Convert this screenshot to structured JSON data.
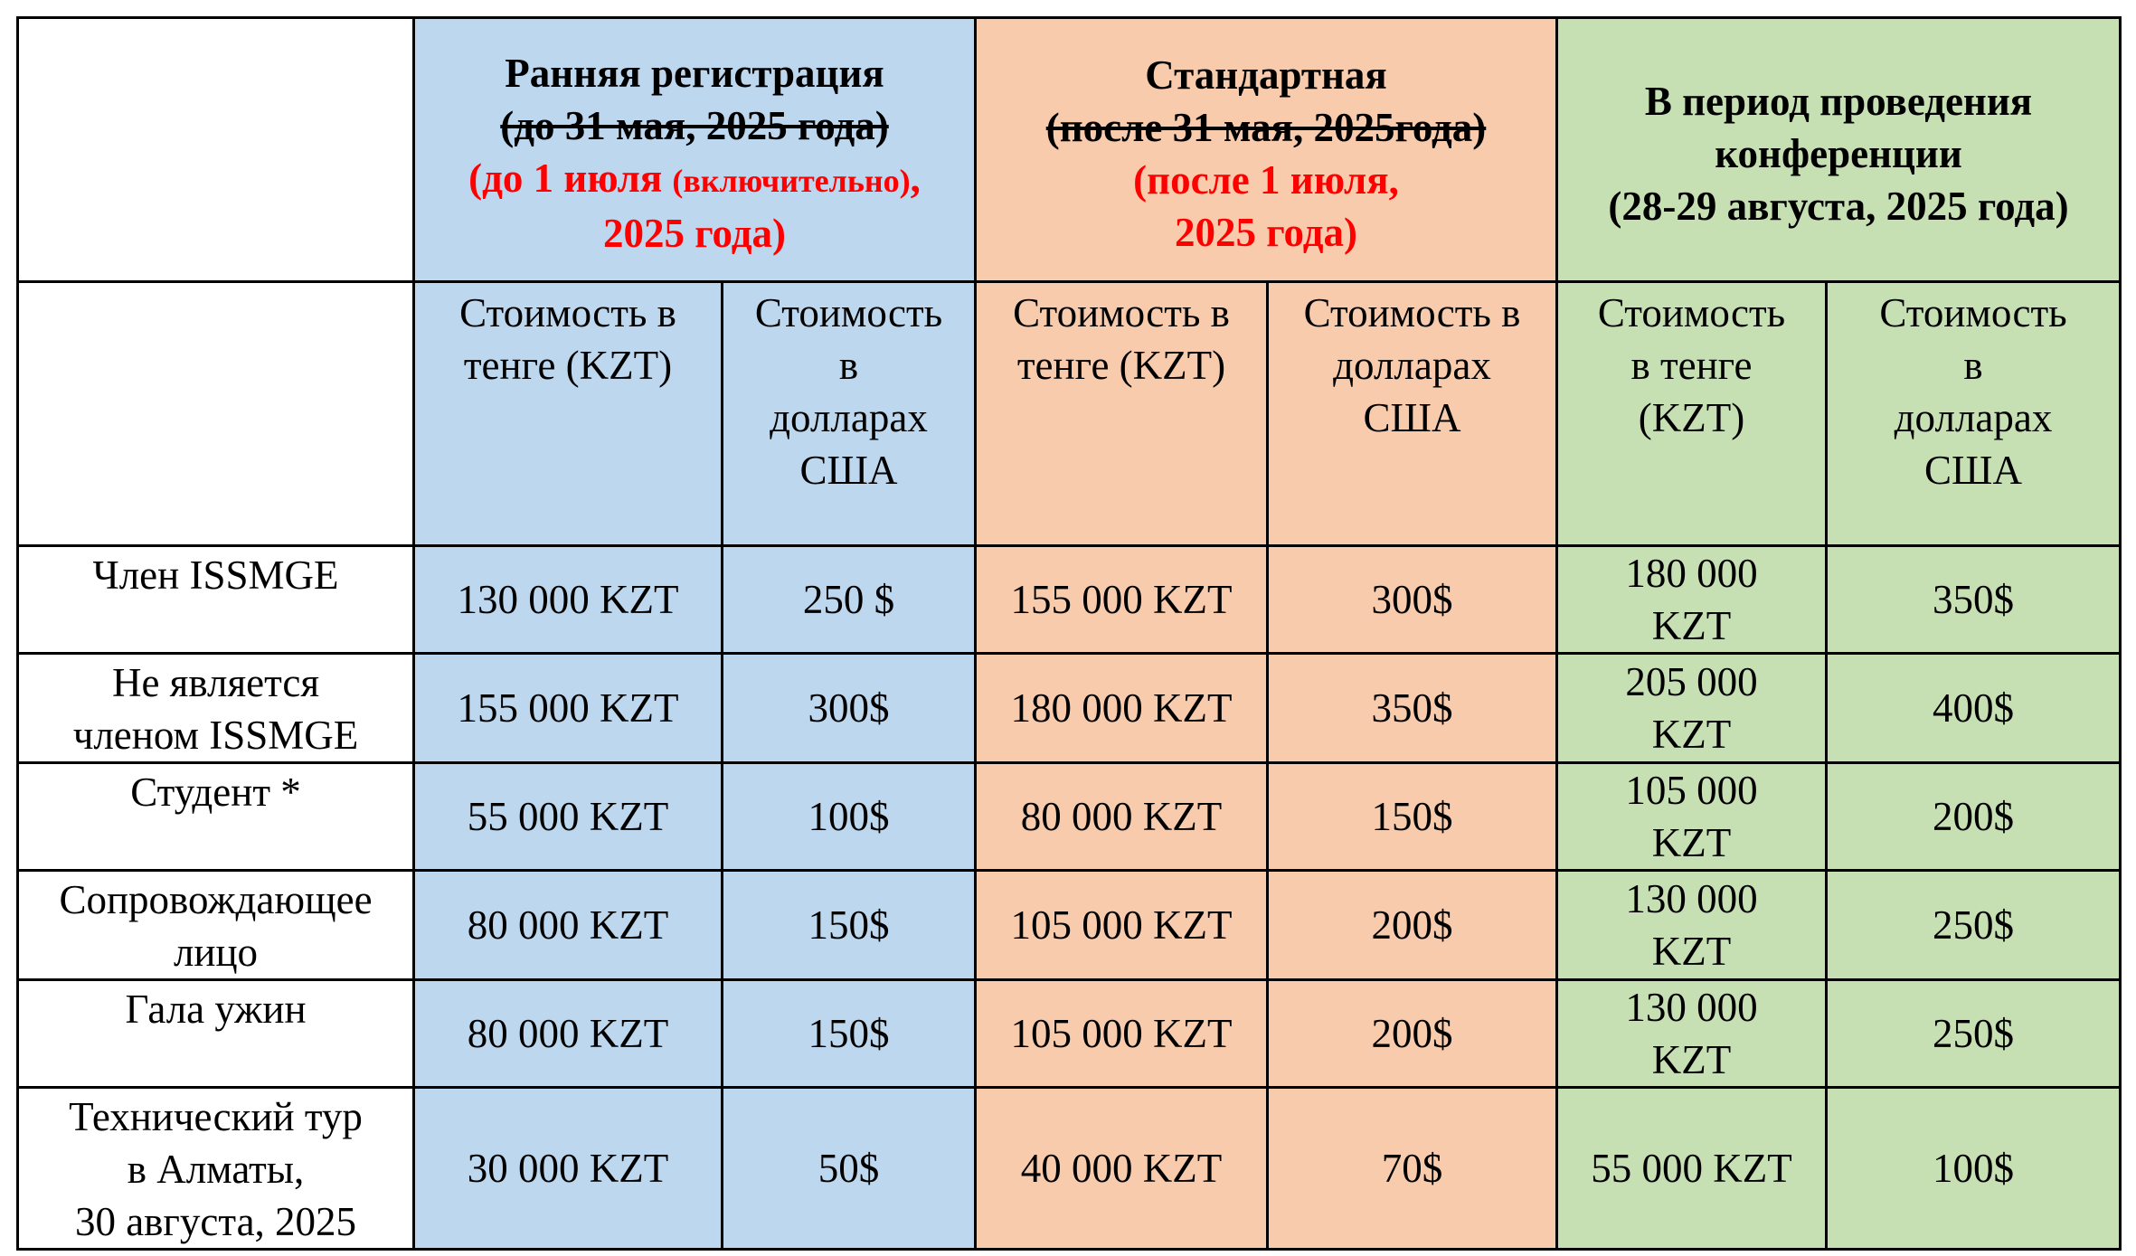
{
  "groups": [
    {
      "title": "Ранняя регистрация",
      "struck": "(до 31 мая, 2025 года)",
      "red_a": "(до 1 июля ",
      "red_small": "(включительно)",
      "red_b": ",",
      "red_c": "2025 года)"
    },
    {
      "title": "Стандартная",
      "struck": "(после 31 мая, 2025года)",
      "red_a": "(после 1 июля,",
      "red_c": "2025 года)"
    },
    {
      "title_a": "В период проведения",
      "title_b": "конференции",
      "title_c": "(28-29 августа, 2025 года)"
    }
  ],
  "subheaders": [
    [
      "Стоимость в",
      "тенге (KZT)"
    ],
    [
      "Стоимость",
      "в",
      "долларах",
      "США"
    ],
    [
      "Стоимость в",
      "тенге (KZT)"
    ],
    [
      "Стоимость в",
      "долларах",
      "США"
    ],
    [
      "Стоимость",
      "в тенге",
      "(KZT)"
    ],
    [
      "Стоимость",
      "в",
      "долларах",
      "США"
    ]
  ],
  "rows": [
    {
      "category": [
        "Член ISSMGE"
      ],
      "values": [
        "130 000 KZT",
        "250 $",
        "155 000 KZT",
        "300$",
        [
          "180 000",
          "KZT"
        ],
        "350$"
      ]
    },
    {
      "category": [
        "Не является",
        "членом ISSMGE"
      ],
      "values": [
        "155 000 KZT",
        "300$",
        "180 000 KZT",
        "350$",
        [
          "205 000",
          "KZT"
        ],
        "400$"
      ]
    },
    {
      "category": [
        "Студент *"
      ],
      "values": [
        "55 000 KZT",
        "100$",
        "80 000 KZT",
        "150$",
        [
          "105 000",
          "KZT"
        ],
        "200$"
      ]
    },
    {
      "category": [
        "Сопровождающее",
        "лицо"
      ],
      "values": [
        "80 000 KZT",
        "150$",
        "105 000 KZT",
        "200$",
        [
          "130 000",
          "KZT"
        ],
        "250$"
      ]
    },
    {
      "category": [
        "Гала ужин"
      ],
      "values": [
        "80 000 KZT",
        "150$",
        "105 000 KZT",
        "200$",
        [
          "130 000",
          "KZT"
        ],
        "250$"
      ]
    },
    {
      "category": [
        "Технический тур",
        "в Алматы,",
        "30 августа, 2025"
      ],
      "values": [
        "30 000 KZT",
        "50$",
        "40 000 KZT",
        "70$",
        "55 000 KZT",
        "100$"
      ]
    }
  ],
  "colors": {
    "early": "#bdd7ee",
    "standard": "#f8cbad",
    "during": "#c6e0b4",
    "red_text": "#ff0000"
  }
}
